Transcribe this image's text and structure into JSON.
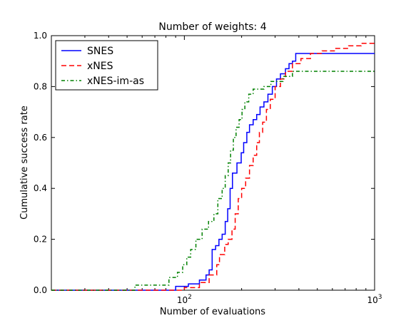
{
  "chart_data": {
    "type": "line",
    "title": "Number of weights: 4",
    "xlabel": "Number of evaluations",
    "ylabel": "Cumulative success rate",
    "xscale": "log",
    "xlim": [
      20,
      1000
    ],
    "ylim": [
      0,
      1.0
    ],
    "x_tick_labels": [
      {
        "value": 100,
        "base": "10",
        "exp": "2"
      },
      {
        "value": 1000,
        "base": "10",
        "exp": "3"
      }
    ],
    "y_ticks": [
      0.0,
      0.2,
      0.4,
      0.6,
      0.8,
      1.0
    ],
    "y_tick_labels": [
      "0.0",
      "0.2",
      "0.4",
      "0.6",
      "0.8",
      "1.0"
    ],
    "grid": false,
    "legend_position": "top-left",
    "series": [
      {
        "name": "SNES",
        "color": "#0000ff",
        "dash": "solid",
        "points": [
          [
            20,
            0
          ],
          [
            90,
            0
          ],
          [
            90,
            0.015
          ],
          [
            105,
            0.015
          ],
          [
            105,
            0.025
          ],
          [
            120,
            0.025
          ],
          [
            120,
            0.04
          ],
          [
            130,
            0.04
          ],
          [
            130,
            0.06
          ],
          [
            135,
            0.06
          ],
          [
            135,
            0.08
          ],
          [
            140,
            0.08
          ],
          [
            140,
            0.16
          ],
          [
            146,
            0.16
          ],
          [
            146,
            0.175
          ],
          [
            152,
            0.175
          ],
          [
            152,
            0.2
          ],
          [
            158,
            0.2
          ],
          [
            158,
            0.22
          ],
          [
            164,
            0.22
          ],
          [
            164,
            0.27
          ],
          [
            169,
            0.27
          ],
          [
            169,
            0.32
          ],
          [
            174,
            0.32
          ],
          [
            174,
            0.4
          ],
          [
            179,
            0.4
          ],
          [
            179,
            0.46
          ],
          [
            189,
            0.46
          ],
          [
            189,
            0.5
          ],
          [
            199,
            0.5
          ],
          [
            199,
            0.54
          ],
          [
            205,
            0.54
          ],
          [
            205,
            0.58
          ],
          [
            213,
            0.58
          ],
          [
            213,
            0.62
          ],
          [
            220,
            0.62
          ],
          [
            220,
            0.65
          ],
          [
            230,
            0.65
          ],
          [
            230,
            0.67
          ],
          [
            240,
            0.67
          ],
          [
            240,
            0.69
          ],
          [
            250,
            0.69
          ],
          [
            250,
            0.72
          ],
          [
            262,
            0.72
          ],
          [
            262,
            0.74
          ],
          [
            275,
            0.74
          ],
          [
            275,
            0.77
          ],
          [
            290,
            0.77
          ],
          [
            290,
            0.8
          ],
          [
            305,
            0.8
          ],
          [
            305,
            0.83
          ],
          [
            320,
            0.83
          ],
          [
            320,
            0.85
          ],
          [
            340,
            0.85
          ],
          [
            340,
            0.87
          ],
          [
            355,
            0.87
          ],
          [
            355,
            0.89
          ],
          [
            370,
            0.89
          ],
          [
            370,
            0.9
          ],
          [
            385,
            0.9
          ],
          [
            385,
            0.93
          ],
          [
            1000,
            0.93
          ]
        ]
      },
      {
        "name": "xNES",
        "color": "#ff0000",
        "dash": "dashed",
        "points": [
          [
            20,
            0
          ],
          [
            100,
            0
          ],
          [
            100,
            0.01
          ],
          [
            120,
            0.01
          ],
          [
            120,
            0.03
          ],
          [
            135,
            0.03
          ],
          [
            135,
            0.06
          ],
          [
            148,
            0.06
          ],
          [
            148,
            0.1
          ],
          [
            153,
            0.1
          ],
          [
            153,
            0.14
          ],
          [
            163,
            0.14
          ],
          [
            163,
            0.18
          ],
          [
            170,
            0.18
          ],
          [
            170,
            0.2
          ],
          [
            178,
            0.2
          ],
          [
            178,
            0.24
          ],
          [
            185,
            0.24
          ],
          [
            185,
            0.3
          ],
          [
            192,
            0.3
          ],
          [
            192,
            0.36
          ],
          [
            200,
            0.36
          ],
          [
            200,
            0.4
          ],
          [
            210,
            0.4
          ],
          [
            210,
            0.44
          ],
          [
            220,
            0.44
          ],
          [
            220,
            0.49
          ],
          [
            230,
            0.49
          ],
          [
            230,
            0.53
          ],
          [
            240,
            0.53
          ],
          [
            240,
            0.58
          ],
          [
            248,
            0.58
          ],
          [
            248,
            0.62
          ],
          [
            258,
            0.62
          ],
          [
            258,
            0.66
          ],
          [
            270,
            0.66
          ],
          [
            270,
            0.71
          ],
          [
            283,
            0.71
          ],
          [
            283,
            0.75
          ],
          [
            300,
            0.75
          ],
          [
            300,
            0.8
          ],
          [
            320,
            0.8
          ],
          [
            320,
            0.83
          ],
          [
            340,
            0.83
          ],
          [
            340,
            0.86
          ],
          [
            370,
            0.86
          ],
          [
            370,
            0.89
          ],
          [
            410,
            0.89
          ],
          [
            410,
            0.91
          ],
          [
            460,
            0.91
          ],
          [
            460,
            0.93
          ],
          [
            530,
            0.93
          ],
          [
            530,
            0.94
          ],
          [
            620,
            0.94
          ],
          [
            620,
            0.95
          ],
          [
            730,
            0.95
          ],
          [
            730,
            0.96
          ],
          [
            850,
            0.96
          ],
          [
            850,
            0.97
          ],
          [
            1000,
            0.97
          ]
        ]
      },
      {
        "name": "xNES-im-as",
        "color": "#008000",
        "dash": "dashdot",
        "points": [
          [
            20,
            0
          ],
          [
            55,
            0
          ],
          [
            55,
            0.02
          ],
          [
            83,
            0.02
          ],
          [
            83,
            0.05
          ],
          [
            92,
            0.05
          ],
          [
            92,
            0.07
          ],
          [
            98,
            0.07
          ],
          [
            98,
            0.1
          ],
          [
            103,
            0.1
          ],
          [
            103,
            0.13
          ],
          [
            108,
            0.13
          ],
          [
            108,
            0.16
          ],
          [
            115,
            0.16
          ],
          [
            115,
            0.2
          ],
          [
            124,
            0.2
          ],
          [
            124,
            0.24
          ],
          [
            134,
            0.24
          ],
          [
            134,
            0.27
          ],
          [
            143,
            0.27
          ],
          [
            143,
            0.3
          ],
          [
            150,
            0.3
          ],
          [
            150,
            0.36
          ],
          [
            158,
            0.36
          ],
          [
            158,
            0.4
          ],
          [
            164,
            0.4
          ],
          [
            164,
            0.45
          ],
          [
            170,
            0.45
          ],
          [
            170,
            0.5
          ],
          [
            175,
            0.5
          ],
          [
            175,
            0.55
          ],
          [
            181,
            0.55
          ],
          [
            181,
            0.6
          ],
          [
            187,
            0.6
          ],
          [
            187,
            0.64
          ],
          [
            194,
            0.64
          ],
          [
            194,
            0.67
          ],
          [
            201,
            0.67
          ],
          [
            201,
            0.71
          ],
          [
            208,
            0.71
          ],
          [
            208,
            0.74
          ],
          [
            218,
            0.74
          ],
          [
            218,
            0.77
          ],
          [
            230,
            0.77
          ],
          [
            230,
            0.79
          ],
          [
            262,
            0.79
          ],
          [
            262,
            0.8
          ],
          [
            285,
            0.8
          ],
          [
            285,
            0.82
          ],
          [
            330,
            0.82
          ],
          [
            330,
            0.84
          ],
          [
            370,
            0.84
          ],
          [
            370,
            0.86
          ],
          [
            1000,
            0.86
          ]
        ]
      }
    ]
  }
}
